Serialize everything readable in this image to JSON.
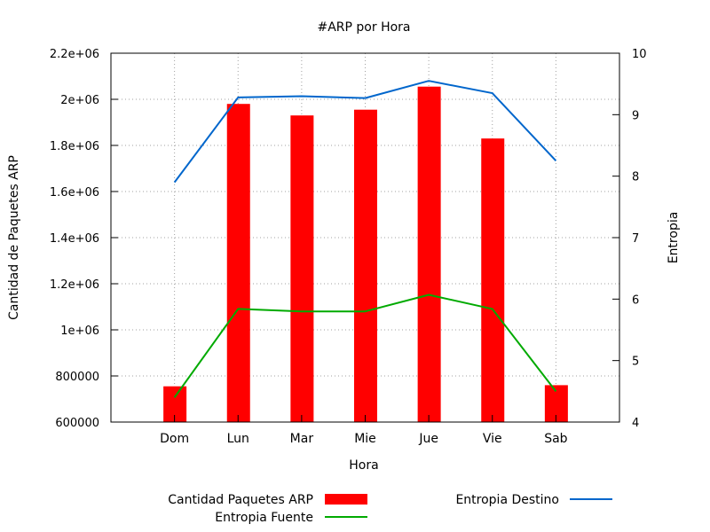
{
  "chart_data": {
    "type": "bar+line",
    "title": "#ARP por Hora",
    "xlabel": "Hora",
    "ylabel": "Cantidad de Paquetes ARP",
    "y2label": "Entropia",
    "categories": [
      "Dom",
      "Lun",
      "Mar",
      "Mie",
      "Jue",
      "Vie",
      "Sab"
    ],
    "ylim": [
      600000,
      2200000
    ],
    "yticks": [
      {
        "value": 600000,
        "label": "600000"
      },
      {
        "value": 800000,
        "label": "800000"
      },
      {
        "value": 1000000,
        "label": "1e+06"
      },
      {
        "value": 1200000,
        "label": "1.2e+06"
      },
      {
        "value": 1400000,
        "label": "1.4e+06"
      },
      {
        "value": 1600000,
        "label": "1.6e+06"
      },
      {
        "value": 1800000,
        "label": "1.8e+06"
      },
      {
        "value": 2000000,
        "label": "2e+06"
      },
      {
        "value": 2200000,
        "label": "2.2e+06"
      }
    ],
    "y2lim": [
      4,
      10
    ],
    "y2ticks": [
      {
        "value": 4,
        "label": "4"
      },
      {
        "value": 5,
        "label": "5"
      },
      {
        "value": 6,
        "label": "6"
      },
      {
        "value": 7,
        "label": "7"
      },
      {
        "value": 8,
        "label": "8"
      },
      {
        "value": 9,
        "label": "9"
      },
      {
        "value": 10,
        "label": "10"
      }
    ],
    "grid": true,
    "legend_position": "bottom",
    "series": [
      {
        "name": "Cantidad Paquetes ARP",
        "kind": "bar",
        "axis": "y",
        "color": "#ff0000",
        "values": [
          755000,
          1980000,
          1930000,
          1955000,
          2055000,
          1830000,
          760000
        ]
      },
      {
        "name": "Entropia Fuente",
        "kind": "line",
        "axis": "y2",
        "color": "#00aa00",
        "values": [
          4.4,
          5.84,
          5.8,
          5.8,
          6.07,
          5.84,
          4.5
        ]
      },
      {
        "name": "Entropia Destino",
        "kind": "line",
        "axis": "y2",
        "color": "#0066cc",
        "values": [
          7.9,
          9.28,
          9.3,
          9.27,
          9.55,
          9.35,
          8.25
        ]
      }
    ]
  }
}
